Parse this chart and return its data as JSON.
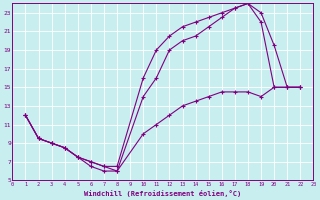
{
  "xlabel": "Windchill (Refroidissement éolien,°C)",
  "bg_color": "#c8eef0",
  "grid_color": "#ffffff",
  "line_color": "#800080",
  "xlim": [
    0,
    23
  ],
  "ylim": [
    5,
    24
  ],
  "xticks": [
    0,
    1,
    2,
    3,
    4,
    5,
    6,
    7,
    8,
    9,
    10,
    11,
    12,
    13,
    14,
    15,
    16,
    17,
    18,
    19,
    20,
    21,
    22,
    23
  ],
  "yticks": [
    5,
    7,
    9,
    11,
    13,
    15,
    17,
    19,
    21,
    23
  ],
  "line1_x": [
    1,
    2,
    3,
    4,
    5,
    6,
    7,
    8,
    10,
    11,
    12,
    13,
    14,
    15,
    16,
    17,
    18,
    19,
    20,
    21,
    22
  ],
  "line1_y": [
    12,
    9.5,
    9,
    8.5,
    7.5,
    7,
    6.5,
    6.5,
    16,
    19,
    20.5,
    21.5,
    22,
    22.5,
    23,
    23.5,
    24,
    23,
    19.5,
    15,
    15
  ],
  "line2_x": [
    1,
    2,
    3,
    4,
    5,
    6,
    7,
    8,
    10,
    11,
    12,
    13,
    14,
    15,
    16,
    17,
    18,
    19,
    20,
    21,
    22
  ],
  "line2_y": [
    12,
    9.5,
    9,
    8.5,
    7.5,
    6.5,
    6,
    6,
    14,
    16,
    19,
    20,
    20.5,
    21.5,
    22.5,
    23.5,
    24,
    22,
    15,
    15,
    15
  ],
  "line3_x": [
    1,
    2,
    3,
    4,
    5,
    6,
    7,
    8,
    10,
    11,
    12,
    13,
    14,
    15,
    16,
    17,
    18,
    19,
    20,
    21,
    22
  ],
  "line3_y": [
    12,
    9.5,
    9,
    8.5,
    7.5,
    7,
    6.5,
    6,
    10,
    11,
    12,
    13,
    13.5,
    14,
    14.5,
    14.5,
    14.5,
    14,
    15,
    15,
    15
  ]
}
